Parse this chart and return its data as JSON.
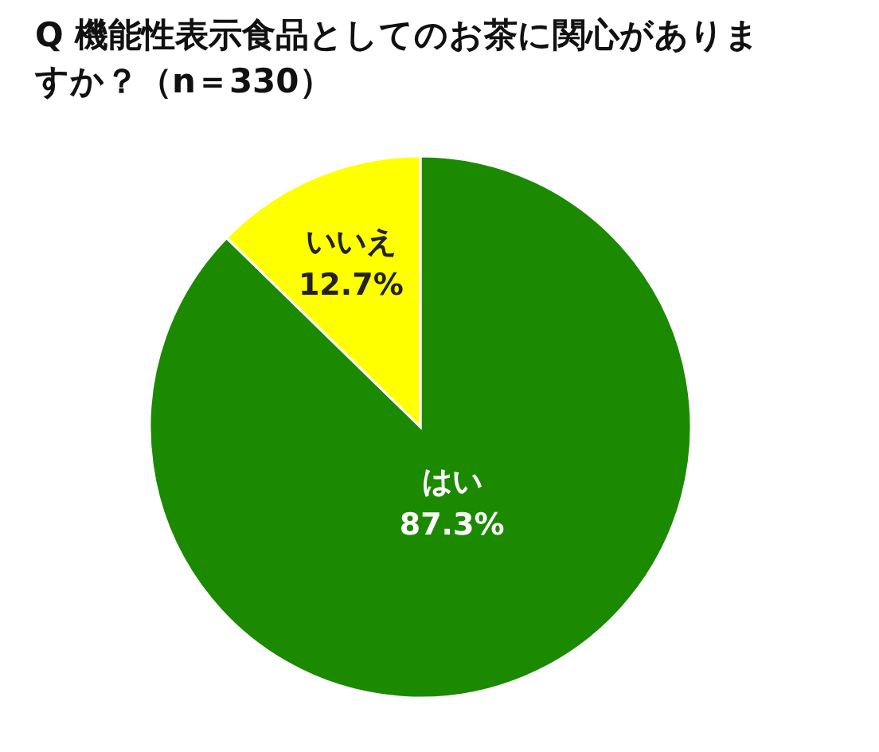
{
  "chart_data": {
    "type": "pie",
    "title": "Q 機能性表示食品としてのお茶に関心がありますか？（n＝330）",
    "categories": [
      "はい",
      "いいえ"
    ],
    "values": [
      87.3,
      12.7
    ],
    "colors": [
      "#1b8a00",
      "#ffff00"
    ],
    "value_labels": [
      "87.3%",
      "12.7%"
    ]
  }
}
